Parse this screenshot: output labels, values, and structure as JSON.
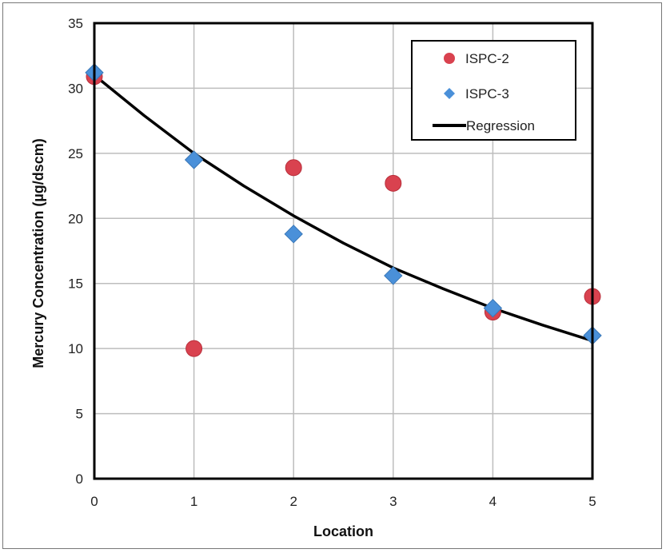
{
  "chart_data": {
    "type": "scatter",
    "title": "",
    "xlabel": "Location",
    "ylabel": "Mercury Concentration (µg/dscm)",
    "xlim": [
      0,
      5
    ],
    "ylim": [
      0,
      35
    ],
    "x_ticks": [
      "0",
      "1",
      "2",
      "3",
      "4",
      "5"
    ],
    "y_ticks": [
      "0",
      "5",
      "10",
      "15",
      "20",
      "25",
      "30",
      "35"
    ],
    "grid": true,
    "legend_position": "top-right",
    "series": [
      {
        "name": "ISPC-2",
        "kind": "points",
        "marker": "circle",
        "color": "#d9424f",
        "points": [
          {
            "x": 0,
            "y": 30.9
          },
          {
            "x": 1,
            "y": 10.0
          },
          {
            "x": 2,
            "y": 23.9
          },
          {
            "x": 3,
            "y": 22.7
          },
          {
            "x": 4,
            "y": 12.8
          },
          {
            "x": 5,
            "y": 14.0
          }
        ]
      },
      {
        "name": "ISPC-3",
        "kind": "points",
        "marker": "diamond",
        "color": "#4a90d9",
        "points": [
          {
            "x": 0,
            "y": 31.2
          },
          {
            "x": 1,
            "y": 24.5
          },
          {
            "x": 2,
            "y": 18.8
          },
          {
            "x": 3,
            "y": 15.6
          },
          {
            "x": 4,
            "y": 13.1
          },
          {
            "x": 5,
            "y": 11.0
          }
        ]
      },
      {
        "name": "Regression",
        "kind": "line",
        "color": "#000000",
        "points": [
          {
            "x": 0,
            "y": 31.0
          },
          {
            "x": 0.5,
            "y": 27.9
          },
          {
            "x": 1,
            "y": 25.0
          },
          {
            "x": 1.5,
            "y": 22.5
          },
          {
            "x": 2,
            "y": 20.2
          },
          {
            "x": 2.5,
            "y": 18.1
          },
          {
            "x": 3,
            "y": 16.2
          },
          {
            "x": 3.5,
            "y": 14.6
          },
          {
            "x": 4,
            "y": 13.1
          },
          {
            "x": 4.5,
            "y": 11.8
          },
          {
            "x": 5,
            "y": 10.6
          }
        ]
      }
    ]
  }
}
